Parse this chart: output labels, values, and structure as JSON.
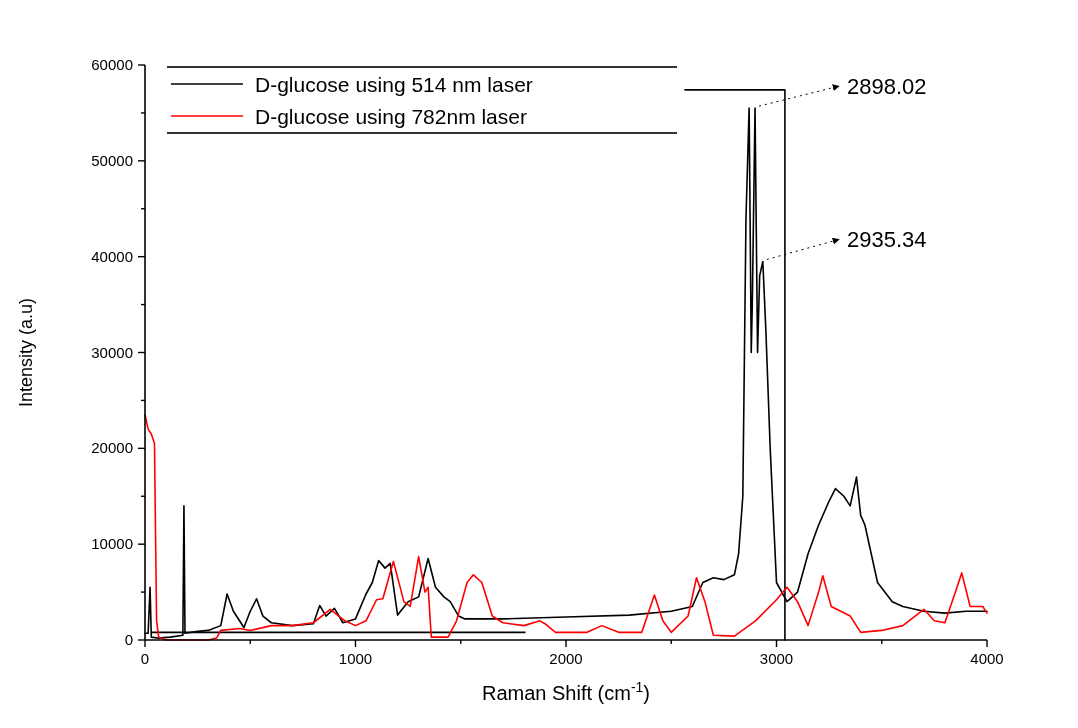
{
  "chart_data": {
    "type": "line",
    "xlabel": "Raman Shift (cm$^{-1}$)",
    "ylabel": "Intensity (a.u)",
    "xlim": [
      0,
      4000
    ],
    "ylim": [
      0,
      60000
    ],
    "xticks": [
      0,
      {
        "value": 500,
        "label": null
      },
      1000,
      {
        "value": 1500,
        "label": null
      },
      2000,
      {
        "value": 2500,
        "label": null
      },
      3000,
      {
        "value": 3500,
        "label": null
      },
      4000
    ],
    "yticks": [
      0,
      {
        "value": 5000,
        "label": null
      },
      10000,
      {
        "value": 15000,
        "label": null
      },
      20000,
      {
        "value": 25000,
        "label": null
      },
      30000,
      {
        "value": 35000,
        "label": null
      },
      40000,
      {
        "value": 45000,
        "label": null
      },
      50000,
      {
        "value": 55000,
        "label": null
      },
      60000
    ],
    "legend": "top left",
    "grid": false,
    "marker": "none",
    "line_style": "solid",
    "annotations": [
      {
        "text": "2898.02",
        "x": 2898.02,
        "y": 55500
      },
      {
        "text": "2935.34",
        "x": 2935.34,
        "y": 39500
      }
    ],
    "series": [
      {
        "name": "D-glucose using 514 nm laser",
        "color": "#000000",
        "x": [
          0,
          15,
          24,
          30,
          60,
          120,
          180,
          185,
          190,
          250,
          300,
          360,
          390,
          420,
          470,
          500,
          530,
          560,
          600,
          700,
          800,
          830,
          860,
          900,
          940,
          1000,
          1050,
          1080,
          1110,
          1140,
          1165,
          1200,
          1250,
          1300,
          1345,
          1380,
          1420,
          1450,
          1490,
          1520,
          1700,
          2000,
          2300,
          2500,
          2600,
          2650,
          2700,
          2750,
          2800,
          2820,
          2840,
          2855,
          2870,
          2880,
          2885,
          2898,
          2910,
          2920,
          2935,
          2950,
          2970,
          3000,
          3050,
          3100,
          3150,
          3200,
          3250,
          3280,
          3320,
          3350,
          3380,
          3400,
          3420,
          3450,
          3480,
          3550,
          3600,
          3700,
          3800,
          3900,
          4000
        ],
        "values": [
          700,
          700,
          5500,
          300,
          200,
          300,
          500,
          14000,
          700,
          900,
          1000,
          1500,
          4800,
          3000,
          1300,
          3000,
          4300,
          2500,
          1800,
          1500,
          1700,
          3600,
          2500,
          3300,
          1800,
          2200,
          4800,
          6000,
          8300,
          7500,
          8000,
          2600,
          4000,
          4500,
          8500,
          5500,
          4500,
          4000,
          2500,
          2200,
          2200,
          2400,
          2600,
          3000,
          3500,
          6000,
          6500,
          6300,
          6800,
          9000,
          15000,
          44000,
          55500,
          30000,
          35000,
          55500,
          30000,
          38000,
          39500,
          32000,
          20000,
          6000,
          4000,
          5000,
          9000,
          12000,
          14500,
          15800,
          15000,
          14000,
          17000,
          13000,
          12000,
          9000,
          6000,
          4000,
          3500,
          3000,
          2800,
          3000,
          3000
        ]
      },
      {
        "color": "#000000",
        "x": [
          30,
          1805
        ],
        "values": [
          800,
          800
        ]
      },
      {
        "color": "#000000",
        "x": [
          3040,
          3040,
          2565
        ],
        "values": [
          0,
          57400,
          57400
        ]
      },
      {
        "name": "D-glucose using 782nm laser",
        "color": "#ff0000",
        "x": [
          0,
          15,
          30,
          45,
          55,
          65,
          100,
          300,
          340,
          360,
          450,
          500,
          600,
          700,
          800,
          880,
          950,
          1000,
          1050,
          1100,
          1130,
          1180,
          1230,
          1260,
          1300,
          1330,
          1345,
          1360,
          1400,
          1440,
          1480,
          1530,
          1560,
          1600,
          1650,
          1700,
          1800,
          1876,
          1900,
          1950,
          2100,
          2170,
          2250,
          2360,
          2420,
          2460,
          2500,
          2580,
          2620,
          2660,
          2700,
          2800,
          2900,
          3000,
          3050,
          3100,
          3150,
          3200,
          3220,
          3260,
          3350,
          3400,
          3500,
          3600,
          3700,
          3750,
          3800,
          3850,
          3880,
          3920,
          3980,
          4000
        ],
        "values": [
          23500,
          22000,
          21500,
          20500,
          2000,
          300,
          0,
          0,
          200,
          1000,
          1200,
          1000,
          1500,
          1500,
          1800,
          3200,
          2000,
          1500,
          2000,
          4200,
          4300,
          8200,
          4000,
          3500,
          8700,
          5000,
          5500,
          300,
          300,
          300,
          2000,
          6000,
          6800,
          6000,
          2500,
          1800,
          1500,
          2000,
          1700,
          800,
          800,
          1500,
          800,
          800,
          4700,
          2000,
          800,
          2500,
          6500,
          4000,
          500,
          400,
          2000,
          4200,
          5500,
          4000,
          1500,
          5000,
          6700,
          3500,
          2500,
          800,
          1000,
          1500,
          3200,
          2000,
          1800,
          5000,
          7000,
          3500,
          3500,
          2800
        ]
      }
    ]
  }
}
